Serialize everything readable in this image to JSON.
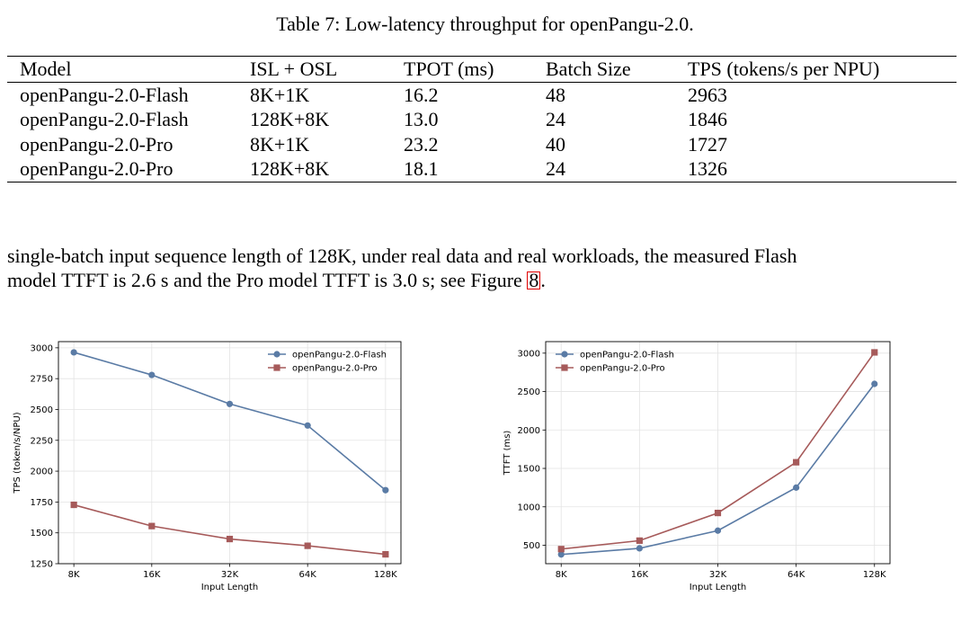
{
  "table": {
    "caption": "Table 7: Low-latency throughput for openPangu-2.0.",
    "headers": [
      "Model",
      "ISL + OSL",
      "TPOT (ms)",
      "Batch Size",
      "TPS (tokens/s per NPU)"
    ],
    "rows": [
      [
        "openPangu-2.0-Flash",
        "8K+1K",
        "16.2",
        "48",
        "2963"
      ],
      [
        "openPangu-2.0-Flash",
        "128K+8K",
        "13.0",
        "24",
        "1846"
      ],
      [
        "openPangu-2.0-Pro",
        "8K+1K",
        "23.2",
        "40",
        "1727"
      ],
      [
        "openPangu-2.0-Pro",
        "128K+8K",
        "18.1",
        "24",
        "1326"
      ]
    ]
  },
  "paragraph": {
    "line1": "single-batch input sequence length of 128K, under real data and real workloads, the measured Flash",
    "line2_prefix": "model TTFT is 2.6 s and the Pro model TTFT is 3.0 s; see Figure ",
    "figure_ref": "8",
    "line2_suffix": "."
  },
  "colors": {
    "flash": "#5a7ba5",
    "pro": "#a65a5a"
  },
  "chart_data": [
    {
      "type": "line",
      "xlabel": "Input Length",
      "ylabel": "TPS (token/s/NPU)",
      "categories": [
        "8K",
        "16K",
        "32K",
        "64K",
        "128K"
      ],
      "ylim": [
        1250,
        3050
      ],
      "yticks": [
        1250,
        1500,
        1750,
        2000,
        2250,
        2500,
        2750,
        3000
      ],
      "legend": "top-right",
      "grid": true,
      "series": [
        {
          "name": "openPangu-2.0-Flash",
          "marker": "circle",
          "values": [
            2963,
            2780,
            2545,
            2370,
            1846
          ]
        },
        {
          "name": "openPangu-2.0-Pro",
          "marker": "square",
          "values": [
            1727,
            1555,
            1450,
            1395,
            1326
          ]
        }
      ]
    },
    {
      "type": "line",
      "xlabel": "Input Length",
      "ylabel": "TTFT (ms)",
      "categories": [
        "8K",
        "16K",
        "32K",
        "64K",
        "128K"
      ],
      "ylim": [
        260,
        3150
      ],
      "yticks": [
        500,
        1000,
        1500,
        2000,
        2500,
        3000
      ],
      "legend": "top-left",
      "grid": true,
      "series": [
        {
          "name": "openPangu-2.0-Flash",
          "marker": "circle",
          "values": [
            380,
            460,
            690,
            1250,
            2600
          ]
        },
        {
          "name": "openPangu-2.0-Pro",
          "marker": "square",
          "values": [
            450,
            560,
            920,
            1580,
            3010
          ]
        }
      ]
    }
  ]
}
